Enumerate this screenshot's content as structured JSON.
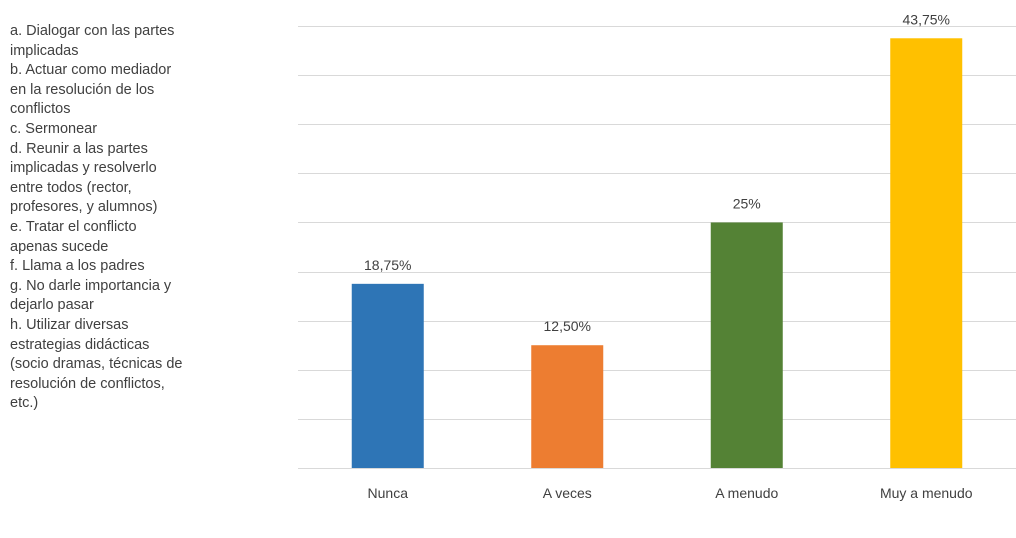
{
  "legend": {
    "lines": [
      "a. Dialogar con las partes",
      "implicadas",
      "b. Actuar como mediador",
      "en la resolución de los",
      "conflictos",
      "c. Sermonear",
      "d. Reunir a las partes",
      "implicadas y resolverlo",
      "entre todos (rector,",
      "profesores, y alumnos)",
      "e. Tratar el conflicto",
      "apenas sucede",
      "f. Llama a los padres",
      "g. No darle importancia y",
      "dejarlo pasar",
      "h. Utilizar diversas",
      "estrategias didácticas",
      "(socio dramas, técnicas de",
      "resolución de conflictos,",
      "etc.)"
    ]
  },
  "chart_data": {
    "type": "bar",
    "title": "",
    "xlabel": "",
    "ylabel": "",
    "categories": [
      "Nunca",
      "A veces",
      "A menudo",
      "Muy a menudo"
    ],
    "values": [
      18.75,
      12.5,
      25,
      43.75
    ],
    "data_labels": [
      "18,75%",
      "12,50%",
      "25%",
      "43,75%"
    ],
    "colors": [
      "#2e75b6",
      "#ed7d31",
      "#548235",
      "#ffc000"
    ],
    "ylim": [
      0,
      45
    ],
    "y_step": 5,
    "grid": true,
    "y_tick_labels_visible": false
  }
}
